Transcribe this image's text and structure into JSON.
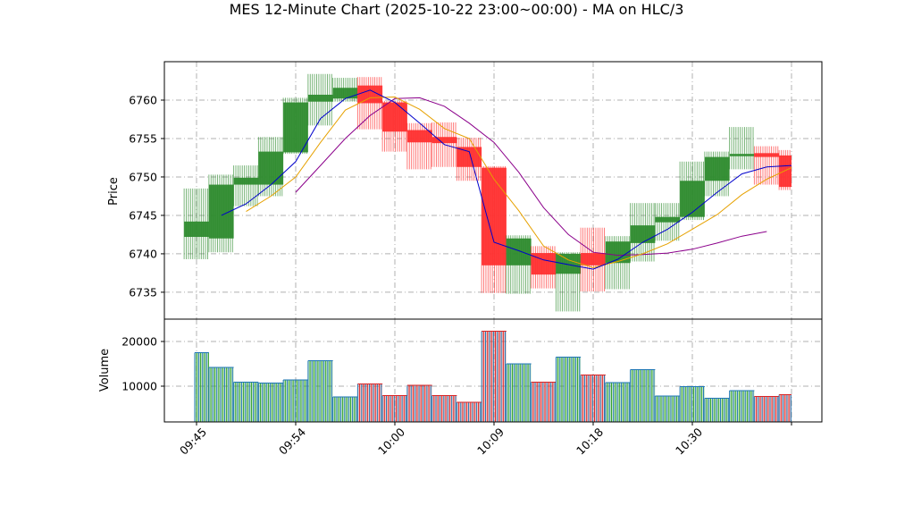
{
  "chart_data": {
    "type": "candlestick",
    "title": "MES 12-Minute Chart (2025-10-22 23:00~00:00) - MA on HLC/3",
    "price_ylabel": "Price",
    "volume_ylabel": "Volume",
    "x_tick_labels": [
      "09:45",
      "09:54",
      "10:00",
      "10:09",
      "10:18",
      "10:30"
    ],
    "price_yticks": [
      6735,
      6740,
      6745,
      6750,
      6755,
      6760
    ],
    "volume_yticks": [
      10000,
      20000
    ],
    "price_ylim": [
      6731.5,
      6765.0
    ],
    "volume_ylim": [
      2000,
      25000
    ],
    "grid": true,
    "colors": {
      "up": "#2e8b2e",
      "down": "#ff3030",
      "ma_fast": "#0000cc",
      "ma_mid": "#e6a100",
      "ma_slow": "#8b008b",
      "vol_up": "#1f77b4",
      "vol_mid": "#2ca02c",
      "vol_down": "#d62728"
    },
    "candles": [
      {
        "o": 6742.2,
        "h": 6748.5,
        "l": 6739.3,
        "c": 6744.2,
        "v": 17500
      },
      {
        "o": 6742.0,
        "h": 6750.3,
        "l": 6740.2,
        "c": 6749.0,
        "v": 14200
      },
      {
        "o": 6749.0,
        "h": 6751.5,
        "l": 6746.2,
        "c": 6749.9,
        "v": 10900
      },
      {
        "o": 6749.0,
        "h": 6755.2,
        "l": 6747.5,
        "c": 6753.3,
        "v": 10700
      },
      {
        "o": 6753.2,
        "h": 6760.3,
        "l": 6753.0,
        "c": 6759.7,
        "v": 11400
      },
      {
        "o": 6759.8,
        "h": 6763.4,
        "l": 6756.7,
        "c": 6760.7,
        "v": 15700
      },
      {
        "o": 6760.2,
        "h": 6762.9,
        "l": 6759.8,
        "c": 6761.6,
        "v": 7600
      },
      {
        "o": 6761.9,
        "h": 6763.0,
        "l": 6756.2,
        "c": 6759.6,
        "v": 10500
      },
      {
        "o": 6759.7,
        "h": 6759.9,
        "l": 6753.3,
        "c": 6755.9,
        "v": 7900
      },
      {
        "o": 6756.1,
        "h": 6757.0,
        "l": 6751.0,
        "c": 6754.5,
        "v": 10200
      },
      {
        "o": 6755.2,
        "h": 6757.1,
        "l": 6751.3,
        "c": 6754.4,
        "v": 7900
      },
      {
        "o": 6753.9,
        "h": 6755.1,
        "l": 6749.5,
        "c": 6751.3,
        "v": 6400
      },
      {
        "o": 6751.2,
        "h": 6751.4,
        "l": 6734.9,
        "c": 6738.5,
        "v": 22300
      },
      {
        "o": 6738.5,
        "h": 6742.4,
        "l": 6734.8,
        "c": 6742.0,
        "v": 15000
      },
      {
        "o": 6740.1,
        "h": 6741.0,
        "l": 6735.5,
        "c": 6737.3,
        "v": 10900
      },
      {
        "o": 6737.4,
        "h": 6740.2,
        "l": 6732.5,
        "c": 6740.0,
        "v": 16500
      },
      {
        "o": 6740.1,
        "h": 6743.4,
        "l": 6735.1,
        "c": 6738.5,
        "v": 12500
      },
      {
        "o": 6738.8,
        "h": 6742.3,
        "l": 6735.4,
        "c": 6741.6,
        "v": 10800
      },
      {
        "o": 6741.4,
        "h": 6746.6,
        "l": 6739.0,
        "c": 6743.7,
        "v": 13700
      },
      {
        "o": 6744.1,
        "h": 6746.6,
        "l": 6741.7,
        "c": 6744.8,
        "v": 7800
      },
      {
        "o": 6744.8,
        "h": 6752.0,
        "l": 6744.4,
        "c": 6749.5,
        "v": 9900
      },
      {
        "o": 6749.5,
        "h": 6753.3,
        "l": 6747.5,
        "c": 6752.6,
        "v": 7300
      },
      {
        "o": 6752.7,
        "h": 6756.5,
        "l": 6751.0,
        "c": 6753.0,
        "v": 9000
      },
      {
        "o": 6753.1,
        "h": 6754.0,
        "l": 6749.0,
        "c": 6752.6,
        "v": 7700
      },
      {
        "o": 6752.8,
        "h": 6753.5,
        "l": 6748.3,
        "c": 6748.7,
        "v": 8100
      }
    ],
    "ma_fast": [
      null,
      6745.0,
      6746.5,
      6749.0,
      6752.0,
      6757.6,
      6760.2,
      6761.3,
      6759.7,
      6757.0,
      6754.2,
      6753.3,
      6741.5,
      6740.4,
      6739.2,
      6738.6,
      6738.0,
      6739.3,
      6741.5,
      6743.2,
      6745.4,
      6748.0,
      6750.4,
      6751.3,
      6751.5
    ],
    "ma_mid": [
      null,
      null,
      6745.5,
      6747.5,
      6750.0,
      6754.5,
      6758.7,
      6760.3,
      6760.4,
      6758.8,
      6756.3,
      6755.0,
      6749.7,
      6745.6,
      6741.0,
      6739.2,
      6738.2,
      6739.0,
      6740.0,
      6741.3,
      6743.2,
      6745.1,
      6747.7,
      6749.7,
      6751.2
    ],
    "ma_slow": [
      null,
      null,
      null,
      null,
      6748.0,
      6751.5,
      6755.0,
      6758.0,
      6760.2,
      6760.3,
      6759.2,
      6757.0,
      6754.5,
      6750.6,
      6746.0,
      6742.5,
      6740.2,
      6739.8,
      6739.9,
      6740.1,
      6740.6,
      6741.4,
      6742.3,
      6742.9,
      null
    ]
  }
}
